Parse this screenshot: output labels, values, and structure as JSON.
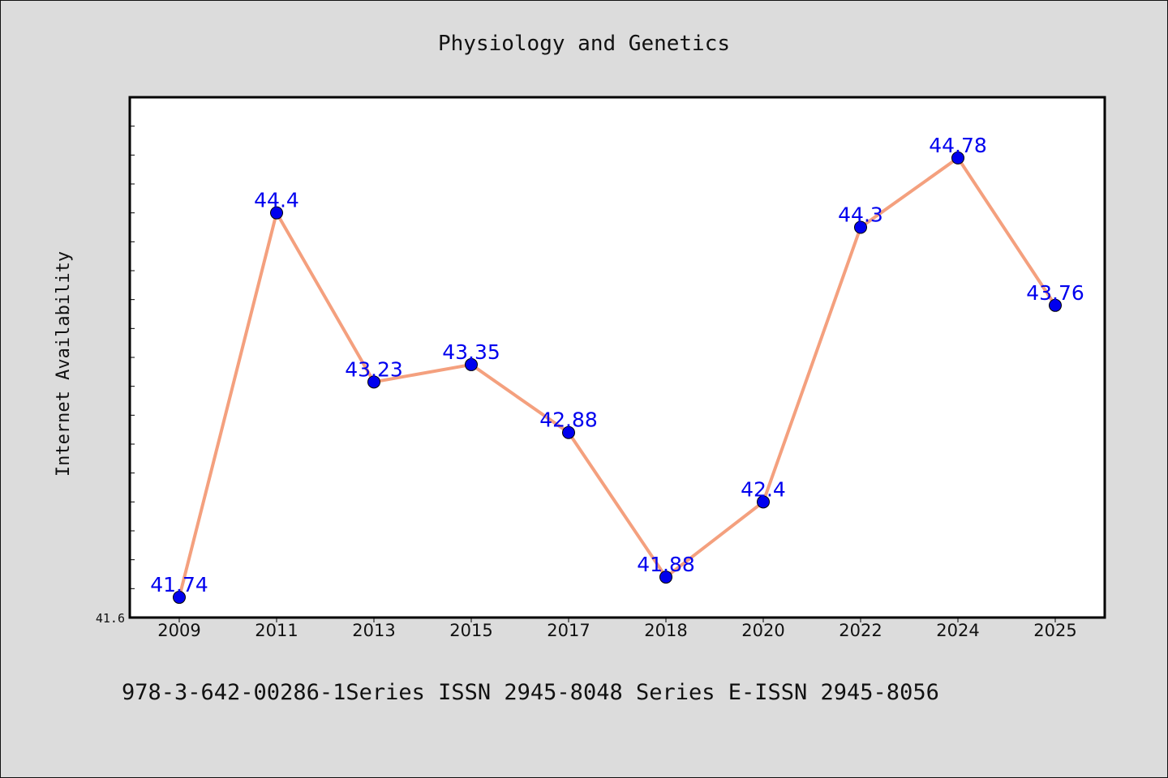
{
  "chart_data": {
    "type": "line",
    "title": "Physiology and Genetics",
    "xlabel": "",
    "ylabel": "Internet Availability",
    "categories": [
      "2009",
      "2011",
      "2013",
      "2015",
      "2017",
      "2018",
      "2020",
      "2022",
      "2024",
      "2025"
    ],
    "values": [
      41.74,
      44.4,
      43.23,
      43.35,
      42.88,
      41.88,
      42.4,
      44.3,
      44.78,
      43.76
    ],
    "data_labels": [
      "41.74",
      "44.4",
      "43.23",
      "43.35",
      "42.88",
      "41.88",
      "42.4",
      "44.3",
      "44.78",
      "43.76"
    ],
    "ylim": [
      41.6,
      45.2
    ],
    "y_tick_labels": [
      "41.6"
    ],
    "grid": false,
    "line_color": "#f4a07e",
    "marker_color": "#0000ee",
    "label_color": "#0000ee"
  },
  "footer": {
    "text": "978-3-642-00286-1Series ISSN 2945-8048 Series E-ISSN 2945-8056"
  }
}
